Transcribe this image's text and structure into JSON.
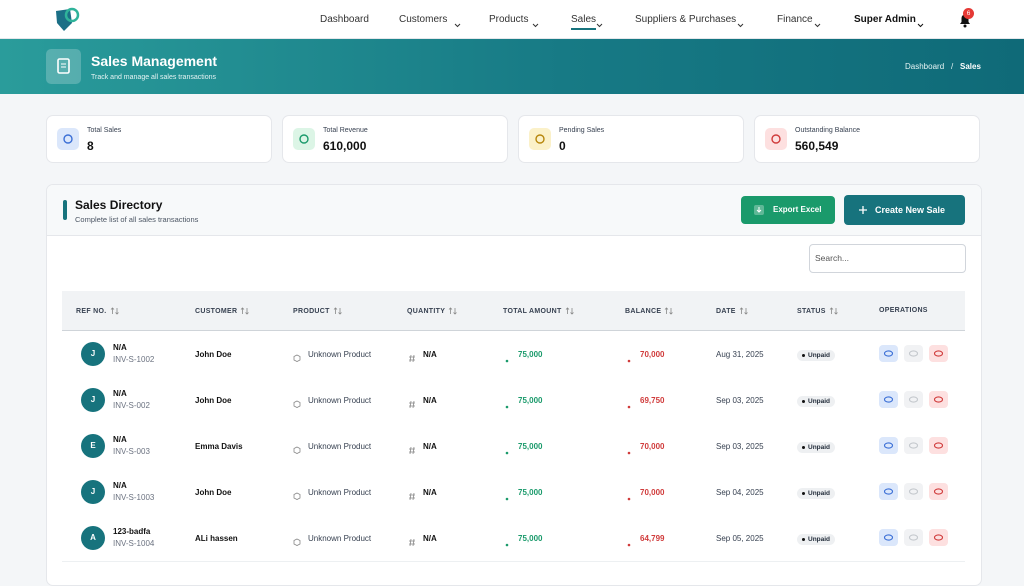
{
  "nav": {
    "items": [
      "Dashboard",
      "Customers",
      "Products",
      "Sales",
      "Suppliers & Purchases",
      "Finance"
    ],
    "user": "Super Admin",
    "notifications": "6"
  },
  "header": {
    "title": "Sales Management",
    "subtitle": "Track and manage all sales transactions",
    "breadcrumb": {
      "home": "Dashboard",
      "separator": "/",
      "current": "Sales"
    }
  },
  "stats": [
    {
      "label": "Total Sales",
      "value": "8"
    },
    {
      "label": "Total Revenue",
      "value": "610,000"
    },
    {
      "label": "Pending Sales",
      "value": "0"
    },
    {
      "label": "Outstanding Balance",
      "value": "560,549"
    }
  ],
  "directory": {
    "title": "Sales Directory",
    "subtitle": "Complete list of all sales transactions",
    "export_button": "Export Excel",
    "create_button": "Create New Sale",
    "search_placeholder": "Search..."
  },
  "table": {
    "columns": [
      "REF NO.",
      "CUSTOMER",
      "PRODUCT",
      "QUANTITY",
      "TOTAL AMOUNT",
      "BALANCE",
      "DATE",
      "STATUS",
      "OPERATIONS"
    ],
    "rows": [
      {
        "avatar": "J",
        "ref": "N/A",
        "invoice": "INV-S-1002",
        "customer": "John Doe",
        "product": "Unknown Product",
        "quantity": "N/A",
        "amount": "75,000",
        "balance": "70,000",
        "date": "Aug 31, 2025",
        "status": "Unpaid"
      },
      {
        "avatar": "J",
        "ref": "N/A",
        "invoice": "INV-S-002",
        "customer": "John Doe",
        "product": "Unknown Product",
        "quantity": "N/A",
        "amount": "75,000",
        "balance": "69,750",
        "date": "Sep 03, 2025",
        "status": "Unpaid"
      },
      {
        "avatar": "E",
        "ref": "N/A",
        "invoice": "INV-S-003",
        "customer": "Emma Davis",
        "product": "Unknown Product",
        "quantity": "N/A",
        "amount": "75,000",
        "balance": "70,000",
        "date": "Sep 03, 2025",
        "status": "Unpaid"
      },
      {
        "avatar": "J",
        "ref": "N/A",
        "invoice": "INV-S-1003",
        "customer": "John Doe",
        "product": "Unknown Product",
        "quantity": "N/A",
        "amount": "75,000",
        "balance": "70,000",
        "date": "Sep 04, 2025",
        "status": "Unpaid"
      },
      {
        "avatar": "A",
        "ref": "123-badfa",
        "invoice": "INV-S-1004",
        "customer": "ALi hassen",
        "product": "Unknown Product",
        "quantity": "N/A",
        "amount": "75,000",
        "balance": "64,799",
        "date": "Sep 05, 2025",
        "status": "Unpaid"
      }
    ]
  }
}
